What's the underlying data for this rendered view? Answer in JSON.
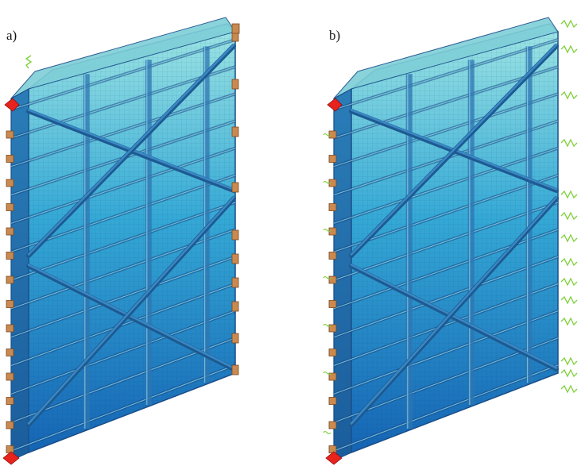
{
  "figure": {
    "panels": [
      {
        "label": "a)"
      },
      {
        "label": "b)"
      }
    ],
    "colors": {
      "panel_top": "#9fe6e4",
      "panel_mid": "#35a9d6",
      "panel_bottom": "#1565b5",
      "frame": "#1a4f8a",
      "column": "#2e76b2",
      "brace": "#3a88c4",
      "support_block": "#c98a52",
      "pin_support": "#e8231d",
      "spring_symbol": "#7fd13b"
    }
  }
}
